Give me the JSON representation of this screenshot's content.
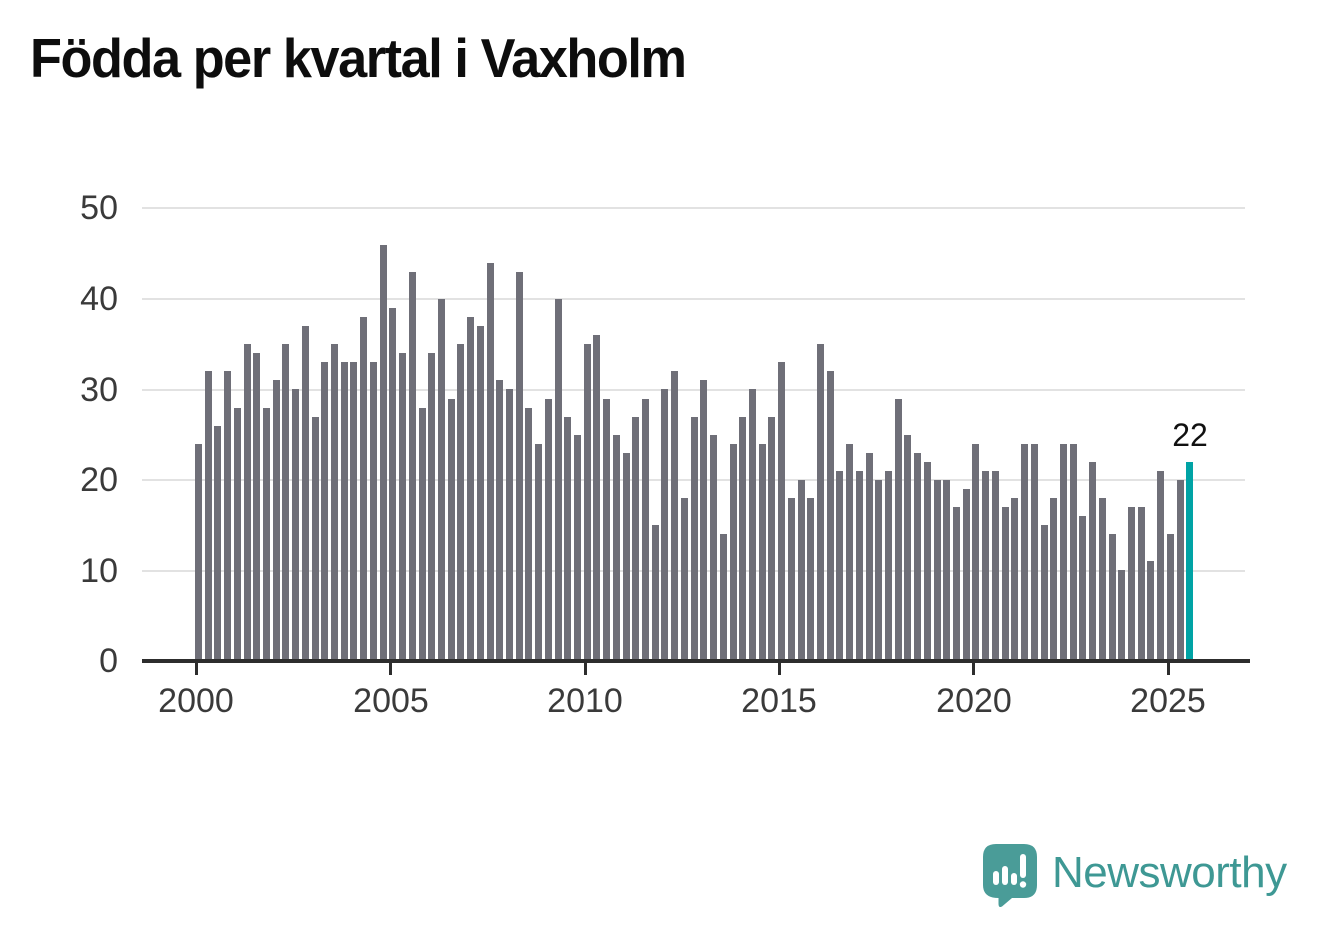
{
  "title": "Födda per kvartal i Vaxholm",
  "logo": {
    "text": "Newsworthy",
    "icon": "speech-bubble-bar-chart"
  },
  "colors": {
    "bar": "#6f6f78",
    "highlight": "#00a3a5",
    "grid": "#e2e2e2",
    "axis": "#2d2d2d",
    "title": "#0d0d0d",
    "tick_label": "#3a3a3a",
    "annotation": "#111111",
    "logo": "#3e9894",
    "logo_bubble": "#4a9c98",
    "background": "#ffffff"
  },
  "chart_data": {
    "type": "bar",
    "title": "Födda per kvartal i Vaxholm",
    "xlabel": "",
    "ylabel": "",
    "x_tick_labels": [
      "2000",
      "2005",
      "2010",
      "2015",
      "2020",
      "2025"
    ],
    "y_ticks": [
      0,
      10,
      20,
      30,
      40,
      50
    ],
    "ylim": [
      0,
      52
    ],
    "grid": "horizontal",
    "legend": "none",
    "highlight_index": 102,
    "highlight_label": "22",
    "series": [
      {
        "year": 2000,
        "values": [
          24,
          32,
          26,
          32
        ]
      },
      {
        "year": 2001,
        "values": [
          28,
          35,
          34,
          28
        ]
      },
      {
        "year": 2002,
        "values": [
          31,
          35,
          30,
          37
        ]
      },
      {
        "year": 2003,
        "values": [
          27,
          33,
          35,
          33
        ]
      },
      {
        "year": 2004,
        "values": [
          33,
          38,
          33,
          46
        ]
      },
      {
        "year": 2005,
        "values": [
          39,
          34,
          43,
          28
        ]
      },
      {
        "year": 2006,
        "values": [
          34,
          40,
          29,
          35
        ]
      },
      {
        "year": 2007,
        "values": [
          38,
          37,
          44,
          31
        ]
      },
      {
        "year": 2008,
        "values": [
          30,
          43,
          28,
          24
        ]
      },
      {
        "year": 2009,
        "values": [
          29,
          40,
          27,
          25
        ]
      },
      {
        "year": 2010,
        "values": [
          35,
          36,
          29,
          25
        ]
      },
      {
        "year": 2011,
        "values": [
          23,
          27,
          29,
          15
        ]
      },
      {
        "year": 2012,
        "values": [
          30,
          32,
          18,
          27
        ]
      },
      {
        "year": 2013,
        "values": [
          31,
          25,
          14,
          24
        ]
      },
      {
        "year": 2014,
        "values": [
          27,
          30,
          24,
          27
        ]
      },
      {
        "year": 2015,
        "values": [
          33,
          18,
          20,
          18
        ]
      },
      {
        "year": 2016,
        "values": [
          35,
          32,
          21,
          24
        ]
      },
      {
        "year": 2017,
        "values": [
          21,
          23,
          20,
          21
        ]
      },
      {
        "year": 2018,
        "values": [
          29,
          25,
          23,
          22
        ]
      },
      {
        "year": 2019,
        "values": [
          20,
          20,
          17,
          19
        ]
      },
      {
        "year": 2020,
        "values": [
          24,
          21,
          21,
          17
        ]
      },
      {
        "year": 2021,
        "values": [
          18,
          24,
          24,
          15
        ]
      },
      {
        "year": 2022,
        "values": [
          18,
          24,
          24,
          16
        ]
      },
      {
        "year": 2023,
        "values": [
          22,
          18,
          14,
          10
        ]
      },
      {
        "year": 2024,
        "values": [
          17,
          17,
          11,
          21
        ]
      },
      {
        "year": 2025,
        "values": [
          14,
          20,
          22
        ]
      }
    ]
  }
}
